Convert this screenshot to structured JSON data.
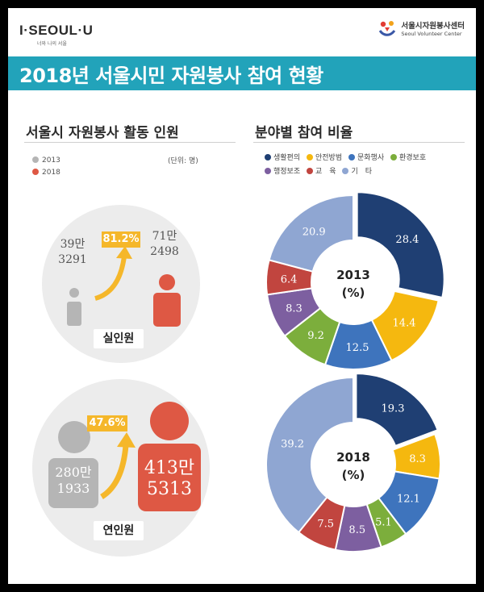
{
  "header": {
    "seoul_logo": "I·SEOUL·U",
    "seoul_tagline": "너와 나의 서울",
    "vc_name_ko": "서울시자원봉사센터",
    "vc_name_en": "Seoul Volunteer Center"
  },
  "banner_title": "2018년 서울시민 자원봉사 참여 현황",
  "left": {
    "title": "서울시 자원봉사 활동 인원",
    "legend": [
      {
        "label": "2013",
        "color": "#b5b5b5"
      },
      {
        "label": "2018",
        "color": "#de5844"
      }
    ],
    "unit": "(단위: 명)",
    "real": {
      "label": "실인원",
      "v2013_line1": "39만",
      "v2013_line2": "3291",
      "v2018_line1": "71만",
      "v2018_line2": "2498",
      "growth": "81.2%"
    },
    "total": {
      "label": "연인원",
      "v2013_line1": "280만",
      "v2013_line2": "1933",
      "v2018_line1": "413만",
      "v2018_line2": "5313",
      "growth": "47.6%"
    }
  },
  "right": {
    "title": "분야별 참여 비율",
    "legend": [
      {
        "label": "생활편의",
        "color": "#1f3f73"
      },
      {
        "label": "안전방범",
        "color": "#f5b80f"
      },
      {
        "label": "문화행사",
        "color": "#3e74bd"
      },
      {
        "label": "환경보호",
        "color": "#7cae3c"
      },
      {
        "label": "행정보조",
        "color": "#7d5fa0"
      },
      {
        "label": "교　육",
        "color": "#c1453f"
      },
      {
        "label": "기　타",
        "color": "#8fa6d2"
      }
    ]
  },
  "chart_data": [
    {
      "type": "bar",
      "title": "서울시 자원봉사 활동 인원",
      "categories": [
        "실인원",
        "연인원"
      ],
      "series": [
        {
          "name": "2013",
          "values": [
            393291,
            2801933
          ]
        },
        {
          "name": "2018",
          "values": [
            712498,
            4135313
          ]
        }
      ],
      "growth_labels": [
        "81.2%",
        "47.6%"
      ],
      "unit": "(단위: 명)"
    },
    {
      "type": "pie",
      "center_label": "2013",
      "center_unit": "(%)",
      "categories": [
        "생활편의",
        "안전방범",
        "문화행사",
        "환경보호",
        "행정보조",
        "교　육",
        "기　타"
      ],
      "values": [
        28.4,
        14.4,
        12.5,
        9.2,
        8.3,
        6.4,
        20.9
      ],
      "colors": [
        "#1f3f73",
        "#f5b80f",
        "#3e74bd",
        "#7cae3c",
        "#7d5fa0",
        "#c1453f",
        "#8fa6d2"
      ]
    },
    {
      "type": "pie",
      "center_label": "2018",
      "center_unit": "(%)",
      "categories": [
        "생활편의",
        "안전방범",
        "문화행사",
        "환경보호",
        "행정보조",
        "교　육",
        "기　타"
      ],
      "values": [
        19.3,
        8.3,
        12.1,
        5.1,
        8.5,
        7.5,
        39.2
      ],
      "colors": [
        "#1f3f73",
        "#f5b80f",
        "#3e74bd",
        "#7cae3c",
        "#7d5fa0",
        "#c1453f",
        "#8fa6d2"
      ]
    }
  ]
}
